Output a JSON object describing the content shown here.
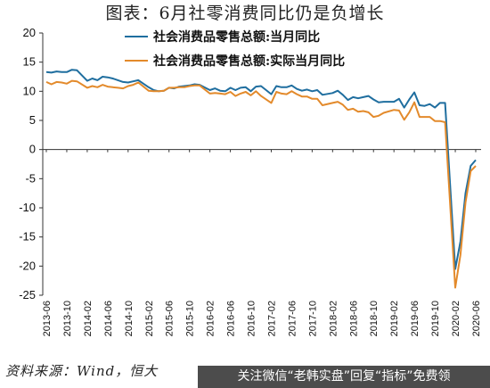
{
  "title": "图表：6月社零消费同比仍是负增长",
  "source": "资料来源：Wind，恒大",
  "banner": "关注微信“老韩实盘”回复“指标”免费领",
  "colors": {
    "nominal": "#1f6e9f",
    "real": "#e38a2b",
    "axis": "#333333"
  },
  "chart_data": {
    "type": "line",
    "title": "",
    "xlabel": "",
    "ylabel": "",
    "ylim": [
      -25,
      20
    ],
    "yticks": [
      -25,
      -20,
      -15,
      -10,
      -5,
      0,
      5,
      10,
      15,
      20
    ],
    "x_ticks": [
      "2013-06",
      "2013-10",
      "2014-02",
      "2014-06",
      "2014-10",
      "2015-02",
      "2015-06",
      "2015-10",
      "2016-02",
      "2016-06",
      "2016-10",
      "2017-02",
      "2017-06",
      "2017-10",
      "2018-02",
      "2018-06",
      "2018-10",
      "2019-02",
      "2019-06",
      "2019-10",
      "2020-02",
      "2020-06"
    ],
    "legend_position": "top",
    "grid": false,
    "series": [
      {
        "name": "社会消费品零售总额:当月同比",
        "color": "#1f6e9f",
        "points": [
          [
            "2013-06",
            13.3
          ],
          [
            "2013-07",
            13.2
          ],
          [
            "2013-08",
            13.4
          ],
          [
            "2013-09",
            13.3
          ],
          [
            "2013-10",
            13.3
          ],
          [
            "2013-11",
            13.7
          ],
          [
            "2013-12",
            13.6
          ],
          [
            "2014-02",
            11.8
          ],
          [
            "2014-03",
            12.2
          ],
          [
            "2014-04",
            11.9
          ],
          [
            "2014-05",
            12.5
          ],
          [
            "2014-06",
            12.4
          ],
          [
            "2014-07",
            12.2
          ],
          [
            "2014-08",
            11.9
          ],
          [
            "2014-09",
            11.6
          ],
          [
            "2014-10",
            11.5
          ],
          [
            "2014-11",
            11.7
          ],
          [
            "2014-12",
            11.9
          ],
          [
            "2015-02",
            10.7
          ],
          [
            "2015-03",
            10.2
          ],
          [
            "2015-04",
            10.0
          ],
          [
            "2015-05",
            10.1
          ],
          [
            "2015-06",
            10.6
          ],
          [
            "2015-07",
            10.5
          ],
          [
            "2015-08",
            10.8
          ],
          [
            "2015-09",
            10.9
          ],
          [
            "2015-10",
            11.0
          ],
          [
            "2015-11",
            11.2
          ],
          [
            "2015-12",
            11.1
          ],
          [
            "2016-02",
            10.2
          ],
          [
            "2016-03",
            10.5
          ],
          [
            "2016-04",
            10.1
          ],
          [
            "2016-05",
            10.0
          ],
          [
            "2016-06",
            10.6
          ],
          [
            "2016-07",
            10.2
          ],
          [
            "2016-08",
            10.6
          ],
          [
            "2016-09",
            10.7
          ],
          [
            "2016-10",
            10.0
          ],
          [
            "2016-11",
            10.8
          ],
          [
            "2016-12",
            10.9
          ],
          [
            "2017-02",
            9.5
          ],
          [
            "2017-03",
            10.9
          ],
          [
            "2017-04",
            10.7
          ],
          [
            "2017-05",
            10.7
          ],
          [
            "2017-06",
            11.0
          ],
          [
            "2017-07",
            10.4
          ],
          [
            "2017-08",
            10.1
          ],
          [
            "2017-09",
            10.3
          ],
          [
            "2017-10",
            10.0
          ],
          [
            "2017-11",
            10.2
          ],
          [
            "2017-12",
            9.4
          ],
          [
            "2018-02",
            9.7
          ],
          [
            "2018-03",
            10.1
          ],
          [
            "2018-04",
            9.4
          ],
          [
            "2018-05",
            8.5
          ],
          [
            "2018-06",
            9.0
          ],
          [
            "2018-07",
            8.8
          ],
          [
            "2018-08",
            9.0
          ],
          [
            "2018-09",
            9.2
          ],
          [
            "2018-10",
            8.6
          ],
          [
            "2018-11",
            8.1
          ],
          [
            "2018-12",
            8.2
          ],
          [
            "2019-02",
            8.2
          ],
          [
            "2019-03",
            8.7
          ],
          [
            "2019-04",
            7.2
          ],
          [
            "2019-05",
            8.6
          ],
          [
            "2019-06",
            9.8
          ],
          [
            "2019-07",
            7.6
          ],
          [
            "2019-08",
            7.5
          ],
          [
            "2019-09",
            7.8
          ],
          [
            "2019-10",
            7.2
          ],
          [
            "2019-11",
            8.0
          ],
          [
            "2019-12",
            8.0
          ],
          [
            "2020-02",
            -20.5
          ],
          [
            "2020-03",
            -15.8
          ],
          [
            "2020-04",
            -7.5
          ],
          [
            "2020-05",
            -2.8
          ],
          [
            "2020-06",
            -1.8
          ]
        ]
      },
      {
        "name": "社会消费品零售总额:实际当月同比",
        "color": "#e38a2b",
        "points": [
          [
            "2013-06",
            11.6
          ],
          [
            "2013-07",
            11.2
          ],
          [
            "2013-08",
            11.6
          ],
          [
            "2013-09",
            11.5
          ],
          [
            "2013-10",
            11.3
          ],
          [
            "2013-11",
            11.8
          ],
          [
            "2013-12",
            11.7
          ],
          [
            "2014-02",
            10.6
          ],
          [
            "2014-03",
            10.9
          ],
          [
            "2014-04",
            10.7
          ],
          [
            "2014-05",
            11.1
          ],
          [
            "2014-06",
            10.8
          ],
          [
            "2014-07",
            10.7
          ],
          [
            "2014-08",
            10.6
          ],
          [
            "2014-09",
            10.5
          ],
          [
            "2014-10",
            10.9
          ],
          [
            "2014-11",
            11.1
          ],
          [
            "2014-12",
            11.5
          ],
          [
            "2015-02",
            10.1
          ],
          [
            "2015-03",
            10.0
          ],
          [
            "2015-04",
            10.0
          ],
          [
            "2015-05",
            10.1
          ],
          [
            "2015-06",
            10.6
          ],
          [
            "2015-07",
            10.6
          ],
          [
            "2015-08",
            10.7
          ],
          [
            "2015-09",
            10.7
          ],
          [
            "2015-10",
            10.9
          ],
          [
            "2015-11",
            11.0
          ],
          [
            "2015-12",
            11.0
          ],
          [
            "2016-02",
            9.6
          ],
          [
            "2016-03",
            9.7
          ],
          [
            "2016-04",
            9.6
          ],
          [
            "2016-05",
            9.5
          ],
          [
            "2016-06",
            9.9
          ],
          [
            "2016-07",
            9.2
          ],
          [
            "2016-08",
            9.6
          ],
          [
            "2016-09",
            9.9
          ],
          [
            "2016-10",
            9.3
          ],
          [
            "2016-11",
            10.0
          ],
          [
            "2016-12",
            9.2
          ],
          [
            "2017-02",
            8.0
          ],
          [
            "2017-03",
            9.9
          ],
          [
            "2017-04",
            9.6
          ],
          [
            "2017-05",
            9.5
          ],
          [
            "2017-06",
            10.0
          ],
          [
            "2017-07",
            9.5
          ],
          [
            "2017-08",
            9.1
          ],
          [
            "2017-09",
            9.1
          ],
          [
            "2017-10",
            8.7
          ],
          [
            "2017-11",
            8.7
          ],
          [
            "2017-12",
            7.6
          ],
          [
            "2018-02",
            8.0
          ],
          [
            "2018-03",
            8.2
          ],
          [
            "2018-04",
            7.7
          ],
          [
            "2018-05",
            6.8
          ],
          [
            "2018-06",
            7.0
          ],
          [
            "2018-07",
            6.5
          ],
          [
            "2018-08",
            6.6
          ],
          [
            "2018-09",
            6.4
          ],
          [
            "2018-10",
            5.6
          ],
          [
            "2018-11",
            5.8
          ],
          [
            "2018-12",
            6.3
          ],
          [
            "2019-02",
            6.8
          ],
          [
            "2019-03",
            6.7
          ],
          [
            "2019-04",
            5.1
          ],
          [
            "2019-05",
            6.4
          ],
          [
            "2019-06",
            8.1
          ],
          [
            "2019-07",
            5.6
          ],
          [
            "2019-08",
            5.6
          ],
          [
            "2019-09",
            5.6
          ],
          [
            "2019-10",
            4.9
          ],
          [
            "2019-11",
            4.9
          ],
          [
            "2019-12",
            4.7
          ],
          [
            "2020-02",
            -23.7
          ],
          [
            "2020-03",
            -18.1
          ],
          [
            "2020-04",
            -9.1
          ],
          [
            "2020-05",
            -3.7
          ],
          [
            "2020-06",
            -2.8
          ]
        ]
      }
    ]
  }
}
